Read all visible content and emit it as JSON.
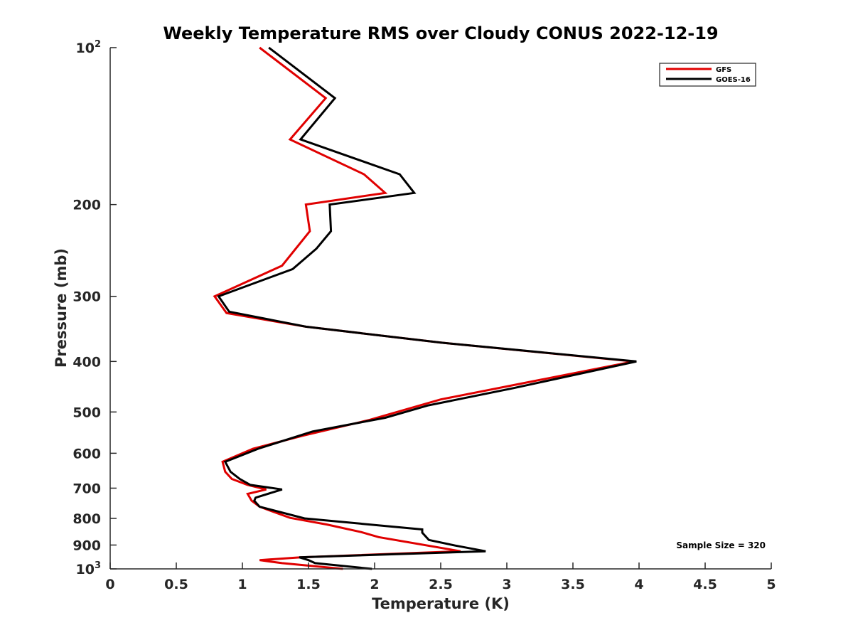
{
  "chart_data": {
    "type": "line",
    "title": "Weekly Temperature RMS over Cloudy CONUS 2022-12-19",
    "xlabel": "Temperature (K)",
    "ylabel": "Pressure (mb)",
    "xlim": [
      0,
      5
    ],
    "ylim": [
      1000,
      100
    ],
    "y_scale": "log",
    "y_reversed": true,
    "x_ticks": [
      "0",
      "0.5",
      "1",
      "1.5",
      "2",
      "2.5",
      "3",
      "3.5",
      "4",
      "4.5",
      "5"
    ],
    "y_ticks": [
      {
        "value": 100,
        "base": "10",
        "exp": "2"
      },
      {
        "value": 200,
        "label": "200"
      },
      {
        "value": 300,
        "label": "300"
      },
      {
        "value": 400,
        "label": "400"
      },
      {
        "value": 500,
        "label": "500"
      },
      {
        "value": 600,
        "label": "600"
      },
      {
        "value": 700,
        "label": "700"
      },
      {
        "value": 800,
        "label": "800"
      },
      {
        "value": 900,
        "label": "900"
      },
      {
        "value": 1000,
        "base": "10",
        "exp": "3"
      }
    ],
    "legend_position": "top-right",
    "annotation": "Sample Size = 320",
    "series": [
      {
        "name": "GFS",
        "color": "#e00000",
        "points": [
          [
            1.13,
            100
          ],
          [
            1.63,
            125
          ],
          [
            1.36,
            150
          ],
          [
            1.92,
            175
          ],
          [
            2.08,
            190
          ],
          [
            1.48,
            200
          ],
          [
            1.51,
            225
          ],
          [
            1.3,
            262
          ],
          [
            0.79,
            300
          ],
          [
            0.88,
            323
          ],
          [
            1.48,
            343
          ],
          [
            2.5,
            368
          ],
          [
            3.96,
            400
          ],
          [
            2.5,
            473
          ],
          [
            1.96,
            518
          ],
          [
            1.46,
            555
          ],
          [
            1.08,
            588
          ],
          [
            0.85,
            623
          ],
          [
            0.87,
            651
          ],
          [
            0.92,
            672
          ],
          [
            1.04,
            690
          ],
          [
            1.18,
            704
          ],
          [
            1.04,
            718
          ],
          [
            1.07,
            740
          ],
          [
            1.13,
            760
          ],
          [
            1.36,
            798
          ],
          [
            1.64,
            822
          ],
          [
            1.9,
            850
          ],
          [
            2.03,
            869
          ],
          [
            2.65,
            925
          ],
          [
            1.44,
            950
          ],
          [
            1.13,
            962
          ],
          [
            1.3,
            975
          ],
          [
            1.76,
            1000
          ]
        ]
      },
      {
        "name": "GOES-16",
        "color": "#000000",
        "points": [
          [
            1.2,
            100
          ],
          [
            1.7,
            125
          ],
          [
            1.44,
            150
          ],
          [
            2.19,
            175
          ],
          [
            2.3,
            190
          ],
          [
            1.66,
            200
          ],
          [
            1.67,
            225
          ],
          [
            1.56,
            243
          ],
          [
            1.38,
            266
          ],
          [
            0.82,
            300
          ],
          [
            0.9,
            321
          ],
          [
            1.48,
            343
          ],
          [
            2.5,
            368
          ],
          [
            3.98,
            400
          ],
          [
            3.05,
            450
          ],
          [
            2.4,
            486
          ],
          [
            2.08,
            513
          ],
          [
            1.53,
            545
          ],
          [
            1.12,
            588
          ],
          [
            0.87,
            623
          ],
          [
            0.91,
            651
          ],
          [
            0.98,
            672
          ],
          [
            1.06,
            690
          ],
          [
            1.3,
            704
          ],
          [
            1.1,
            730
          ],
          [
            1.09,
            740
          ],
          [
            1.13,
            760
          ],
          [
            1.47,
            800
          ],
          [
            2.36,
            840
          ],
          [
            2.36,
            852
          ],
          [
            2.41,
            880
          ],
          [
            2.61,
            902
          ],
          [
            2.84,
            925
          ],
          [
            1.43,
            950
          ],
          [
            1.5,
            962
          ],
          [
            1.55,
            975
          ],
          [
            1.98,
            1000
          ]
        ]
      }
    ]
  }
}
